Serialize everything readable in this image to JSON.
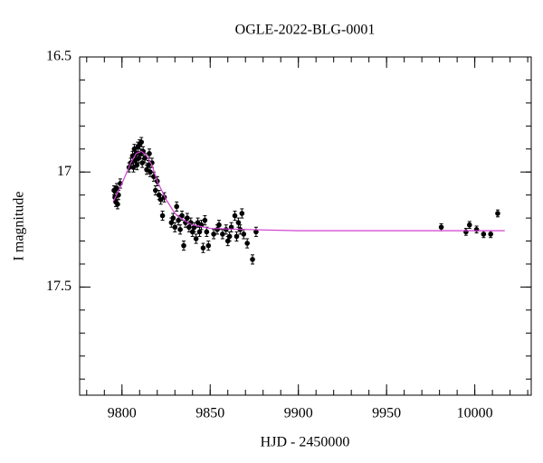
{
  "chart_data": {
    "type": "scatter",
    "title": "OGLE-2022-BLG-0001",
    "xlabel": "HJD - 2450000",
    "ylabel": "I magnitude",
    "xlim": [
      9776,
      10032
    ],
    "ylim": [
      16.5,
      17.97
    ],
    "invert_y": true,
    "xticks": [
      9800,
      9850,
      9900,
      9950,
      10000
    ],
    "yticks": [
      16.5,
      17,
      17.5
    ],
    "xminor": 10,
    "yminor": 0.1,
    "series": [
      {
        "style": "points",
        "color": "#000000",
        "x": [
          9795.5,
          9796,
          9796.5,
          9797,
          9797.5,
          9798,
          9799,
          9804,
          9805,
          9806,
          9806.5,
          9807,
          9807.5,
          9808,
          9808.5,
          9809,
          9809.5,
          9810,
          9810.5,
          9811,
          9811.5,
          9812,
          9813,
          9814,
          9815,
          9815.5,
          9816,
          9817,
          9818,
          9819,
          9820,
          9821,
          9822,
          9823,
          9824,
          9828,
          9829,
          9830,
          9831,
          9832,
          9833,
          9834,
          9835,
          9836,
          9837,
          9838,
          9839,
          9840,
          9841,
          9842,
          9843,
          9844,
          9845,
          9846,
          9847,
          9848,
          9849,
          9852,
          9854,
          9855,
          9857,
          9859,
          9860,
          9861,
          9862,
          9864,
          9865,
          9866,
          9867,
          9868,
          9869,
          9871,
          9874,
          9876,
          9981,
          9995,
          9997,
          10001,
          10005,
          10009,
          10013
        ],
        "values": [
          17.08,
          17.11,
          17.13,
          17.07,
          17.14,
          17.1,
          17.05,
          16.98,
          16.96,
          16.93,
          16.98,
          16.9,
          16.95,
          16.92,
          16.97,
          16.89,
          16.94,
          16.88,
          16.92,
          16.87,
          16.96,
          16.91,
          16.94,
          16.99,
          16.97,
          16.92,
          17.0,
          16.96,
          17.02,
          17.08,
          17.04,
          17.1,
          17.12,
          17.19,
          17.11,
          17.22,
          17.2,
          17.24,
          17.15,
          17.21,
          17.25,
          17.19,
          17.32,
          17.22,
          17.2,
          17.24,
          17.22,
          17.26,
          17.24,
          17.29,
          17.22,
          17.26,
          17.23,
          17.33,
          17.21,
          17.26,
          17.32,
          17.27,
          17.25,
          17.23,
          17.27,
          17.25,
          17.3,
          17.28,
          17.24,
          17.19,
          17.28,
          17.22,
          17.25,
          17.18,
          17.27,
          17.31,
          17.38,
          17.26,
          17.24,
          17.26,
          17.23,
          17.25,
          17.27,
          17.27,
          17.18
        ],
        "errors": [
          0.02,
          0.02,
          0.02,
          0.02,
          0.02,
          0.02,
          0.02,
          0.02,
          0.02,
          0.02,
          0.02,
          0.02,
          0.02,
          0.02,
          0.02,
          0.02,
          0.02,
          0.02,
          0.02,
          0.02,
          0.02,
          0.02,
          0.02,
          0.02,
          0.02,
          0.02,
          0.02,
          0.02,
          0.02,
          0.02,
          0.02,
          0.02,
          0.02,
          0.02,
          0.02,
          0.02,
          0.02,
          0.02,
          0.02,
          0.02,
          0.02,
          0.02,
          0.02,
          0.02,
          0.02,
          0.02,
          0.02,
          0.02,
          0.02,
          0.02,
          0.02,
          0.02,
          0.02,
          0.02,
          0.02,
          0.02,
          0.02,
          0.02,
          0.02,
          0.02,
          0.02,
          0.02,
          0.02,
          0.02,
          0.02,
          0.02,
          0.02,
          0.02,
          0.02,
          0.02,
          0.02,
          0.02,
          0.02,
          0.02,
          0.015,
          0.015,
          0.015,
          0.015,
          0.015,
          0.015,
          0.015
        ]
      },
      {
        "style": "line",
        "color": "#d040d0",
        "x": [
          9795,
          9800,
          9805,
          9808,
          9811,
          9814,
          9817,
          9820,
          9825,
          9830,
          9835,
          9840,
          9850,
          9870,
          9900,
          10017
        ],
        "values": [
          17.13,
          17.05,
          16.96,
          16.92,
          16.91,
          16.93,
          16.97,
          17.04,
          17.12,
          17.18,
          17.21,
          17.23,
          17.245,
          17.25,
          17.255,
          17.255
        ]
      }
    ]
  }
}
